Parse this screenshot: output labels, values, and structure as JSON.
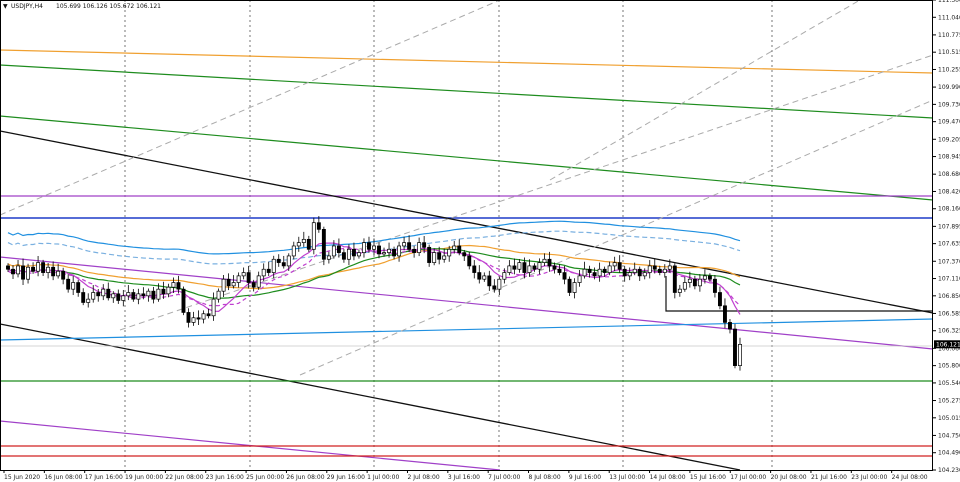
{
  "header": {
    "symbol": "USDJPY,H4",
    "quote": "105.699 106.126 105.672 106.121"
  },
  "chart_data": {
    "type": "candlestick",
    "symbol": "USDJPY,H4",
    "ohlc_shown": {
      "open": 105.699,
      "high": 106.126,
      "low": 105.672,
      "close": 106.121
    },
    "current_price": "106.121",
    "ylim": [
      104.23,
      111.3
    ],
    "price_ticks": [
      "111.300",
      "111.040",
      "110.775",
      "110.515",
      "110.255",
      "109.990",
      "109.730",
      "109.470",
      "109.205",
      "108.945",
      "108.680",
      "108.420",
      "108.160",
      "107.895",
      "107.635",
      "107.370",
      "107.110",
      "106.850",
      "106.585",
      "106.325",
      "106.060",
      "105.800",
      "105.540",
      "105.275",
      "105.015",
      "104.750",
      "104.490",
      "104.230"
    ],
    "time_ticks": [
      "15 Jun 2020",
      "16 Jun 08:00",
      "17 Jun 16:00",
      "19 Jun 00:00",
      "22 Jun 08:00",
      "23 Jun 16:00",
      "25 Jun 00:00",
      "26 Jun 08:00",
      "29 Jun 16:00",
      "1 Jul 00:00",
      "2 Jul 08:00",
      "3 Jul 16:00",
      "7 Jul 00:00",
      "8 Jul 08:00",
      "9 Jul 16:00",
      "13 Jul 00:00",
      "14 Jul 08:00",
      "15 Jul 16:00",
      "17 Jul 00:00",
      "20 Jul 08:00",
      "21 Jul 16:00",
      "23 Jul 00:00",
      "24 Jul 08:00"
    ],
    "closes": [
      107.25,
      107.18,
      107.3,
      107.1,
      107.28,
      107.22,
      107.35,
      107.2,
      107.28,
      107.15,
      107.22,
      107.1,
      106.95,
      107.05,
      106.9,
      106.75,
      106.8,
      106.9,
      106.85,
      106.95,
      106.82,
      106.88,
      106.78,
      106.85,
      106.9,
      106.8,
      106.88,
      106.85,
      106.92,
      106.8,
      106.95,
      106.88,
      106.98,
      107.05,
      106.95,
      106.6,
      106.45,
      106.52,
      106.5,
      106.58,
      106.55,
      106.8,
      106.92,
      107.1,
      107.0,
      107.05,
      107.15,
      107.2,
      107.05,
      106.98,
      107.15,
      107.25,
      107.2,
      107.4,
      107.35,
      107.3,
      107.45,
      107.6,
      107.65,
      107.7,
      107.55,
      107.95,
      107.85,
      107.4,
      107.45,
      107.6,
      107.5,
      107.4,
      107.55,
      107.45,
      107.5,
      107.65,
      107.55,
      107.6,
      107.48,
      107.5,
      107.55,
      107.45,
      107.6,
      107.65,
      107.55,
      107.5,
      107.65,
      107.58,
      107.35,
      107.5,
      107.4,
      107.45,
      107.55,
      107.6,
      107.5,
      107.45,
      107.3,
      107.2,
      107.1,
      107.15,
      107.0,
      106.95,
      107.1,
      107.2,
      107.3,
      107.25,
      107.35,
      107.2,
      107.3,
      107.25,
      107.35,
      107.4,
      107.3,
      107.25,
      107.2,
      107.1,
      106.9,
      107.05,
      107.15,
      107.25,
      107.2,
      107.15,
      107.25,
      107.2,
      107.3,
      107.35,
      107.25,
      107.15,
      107.2,
      107.25,
      107.15,
      107.2,
      107.3,
      107.25,
      107.2,
      107.25,
      107.3,
      106.9,
      106.95,
      107.05,
      107.1,
      107.0,
      107.1,
      107.15,
      107.1,
      106.9,
      106.7,
      106.45,
      106.35,
      105.8,
      106.12
    ]
  }
}
